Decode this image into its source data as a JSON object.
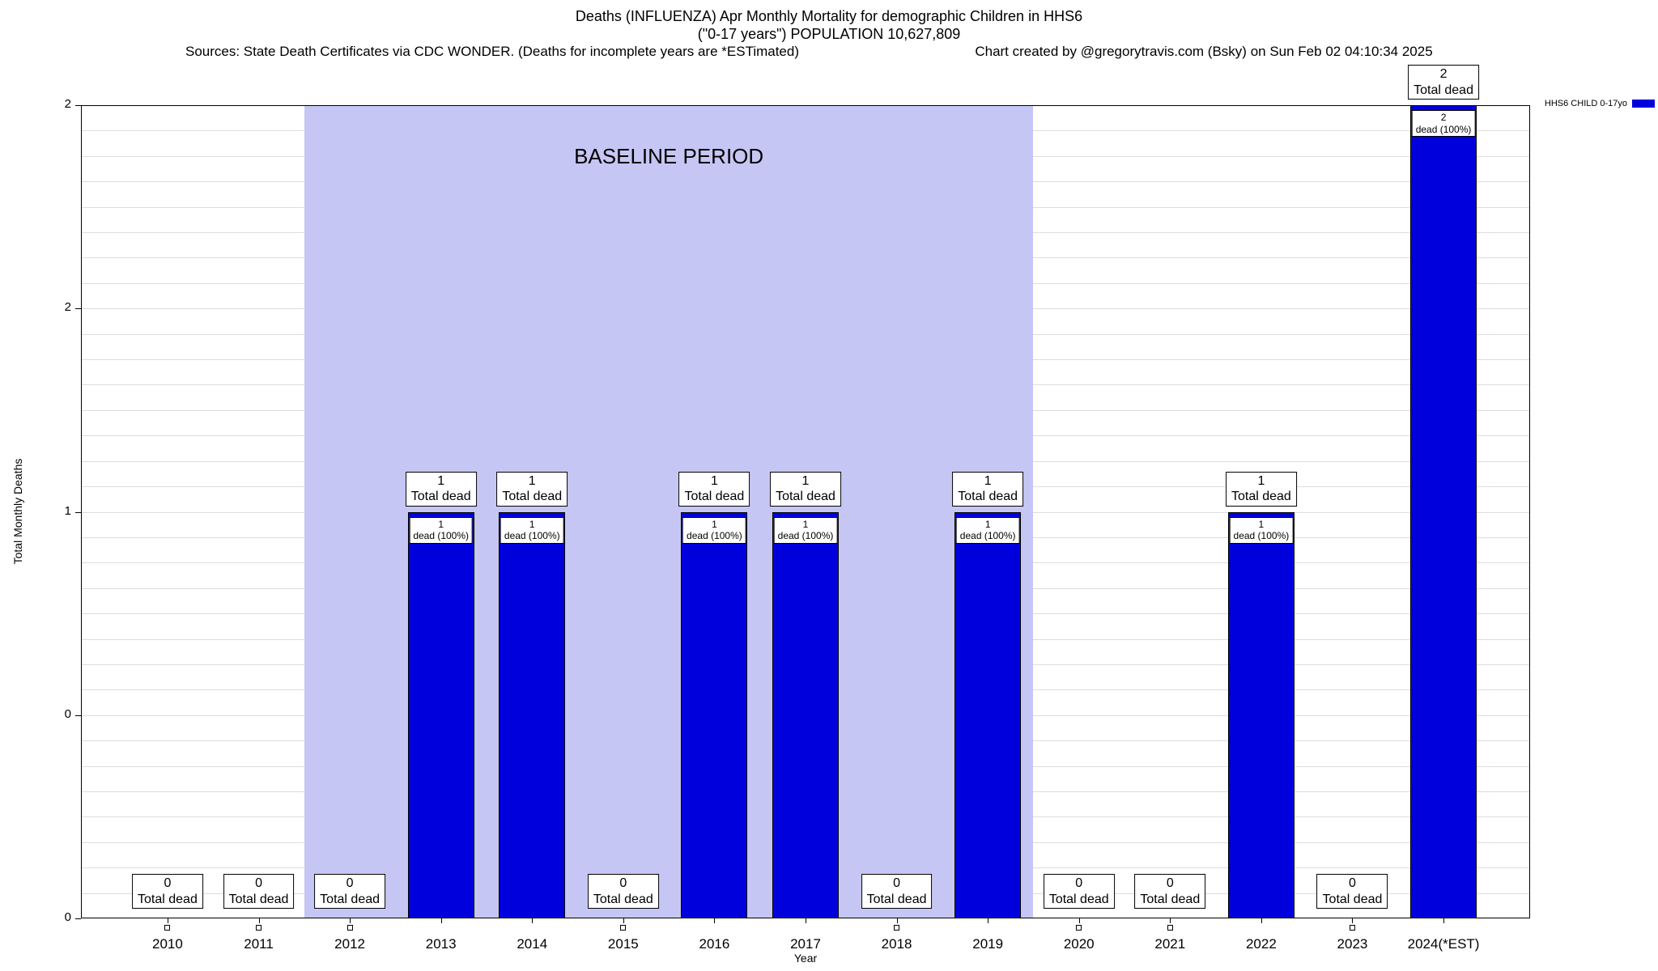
{
  "header": {
    "title_line1": "Deaths (INFLUENZA) Apr Monthly Mortality for demographic Children in HHS6",
    "title_line2": "(\"0-17 years\") POPULATION 10,627,809",
    "sources": "Sources: State Death Certificates via CDC WONDER. (Deaths for incomplete years are *ESTimated)",
    "credit": "Chart created by @gregorytravis.com (Bsky) on Sun Feb 02 04:10:34 2025"
  },
  "chart_data": {
    "type": "bar",
    "title": "Deaths (INFLUENZA) Apr Monthly Mortality for demographic Children in HHS6",
    "subtitle": "(\"0-17 years\") POPULATION 10,627,809",
    "xlabel": "Year",
    "ylabel": "Total Monthly Deaths",
    "ylim": [
      0,
      2
    ],
    "grid": "on",
    "categories": [
      "2010",
      "2011",
      "2012",
      "2013",
      "2014",
      "2015",
      "2016",
      "2017",
      "2018",
      "2019",
      "2020",
      "2021",
      "2022",
      "2023",
      "2024(*EST)"
    ],
    "values": [
      0,
      0,
      0,
      1,
      1,
      0,
      1,
      1,
      0,
      1,
      0,
      0,
      1,
      0,
      2
    ],
    "y_ticks": [
      {
        "value": 0,
        "label": "0"
      },
      {
        "value": 0.5,
        "label": "0"
      },
      {
        "value": 1,
        "label": "1"
      },
      {
        "value": 1.5,
        "label": "2"
      },
      {
        "value": 2,
        "label": "2"
      }
    ],
    "legend": {
      "name": "HHS6 CHILD 0-17yo",
      "position": "top-right"
    },
    "bar_color": "#0000dd",
    "baseline_band": {
      "label": "BASELINE PERIOD",
      "from_category": "2012",
      "to_category": "2019",
      "color": "#c6c6f4"
    },
    "annotations": {
      "total_label": "Total dead",
      "dead_pct_label": "dead (100%)"
    }
  }
}
